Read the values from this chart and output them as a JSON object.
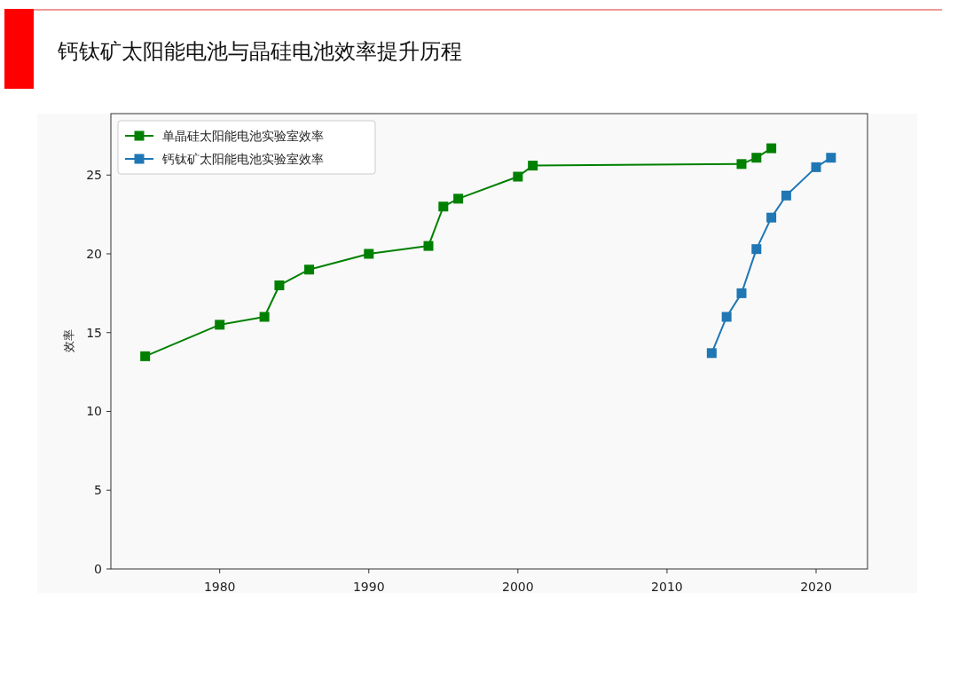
{
  "chart_data": {
    "type": "line",
    "title": "钙钛矿太阳能电池与晶硅电池效率提升历程",
    "ylabel": "效率",
    "xlim": [
      1972.7,
      2023.45
    ],
    "xticks": [
      1980,
      1990,
      2000,
      2010,
      2020
    ],
    "ylim": [
      0,
      28.9
    ],
    "yticks": [
      0,
      5,
      10,
      15,
      20,
      25
    ],
    "grid": false,
    "legend": "top left",
    "marker": "square",
    "line_style": "solid",
    "series": [
      {
        "name": "单晶硅太阳能电池实验室效率",
        "color": "#008000",
        "x": [
          1975,
          1980,
          1983,
          1984,
          1986,
          1990,
          1994,
          1995,
          1996,
          2000,
          2001,
          2015,
          2016,
          2017
        ],
        "values": [
          13.5,
          15.5,
          16.0,
          18.0,
          19.0,
          20.0,
          20.5,
          23.0,
          23.5,
          24.9,
          25.6,
          25.7,
          26.1,
          26.7
        ]
      },
      {
        "name": "钙钛矿太阳能电池实验室效率",
        "color": "#1f77b4",
        "x": [
          2013,
          2014,
          2015,
          2016,
          2017,
          2018,
          2020,
          2021
        ],
        "values": [
          13.7,
          16.0,
          17.5,
          20.3,
          22.3,
          23.7,
          25.5,
          26.1
        ]
      }
    ]
  }
}
